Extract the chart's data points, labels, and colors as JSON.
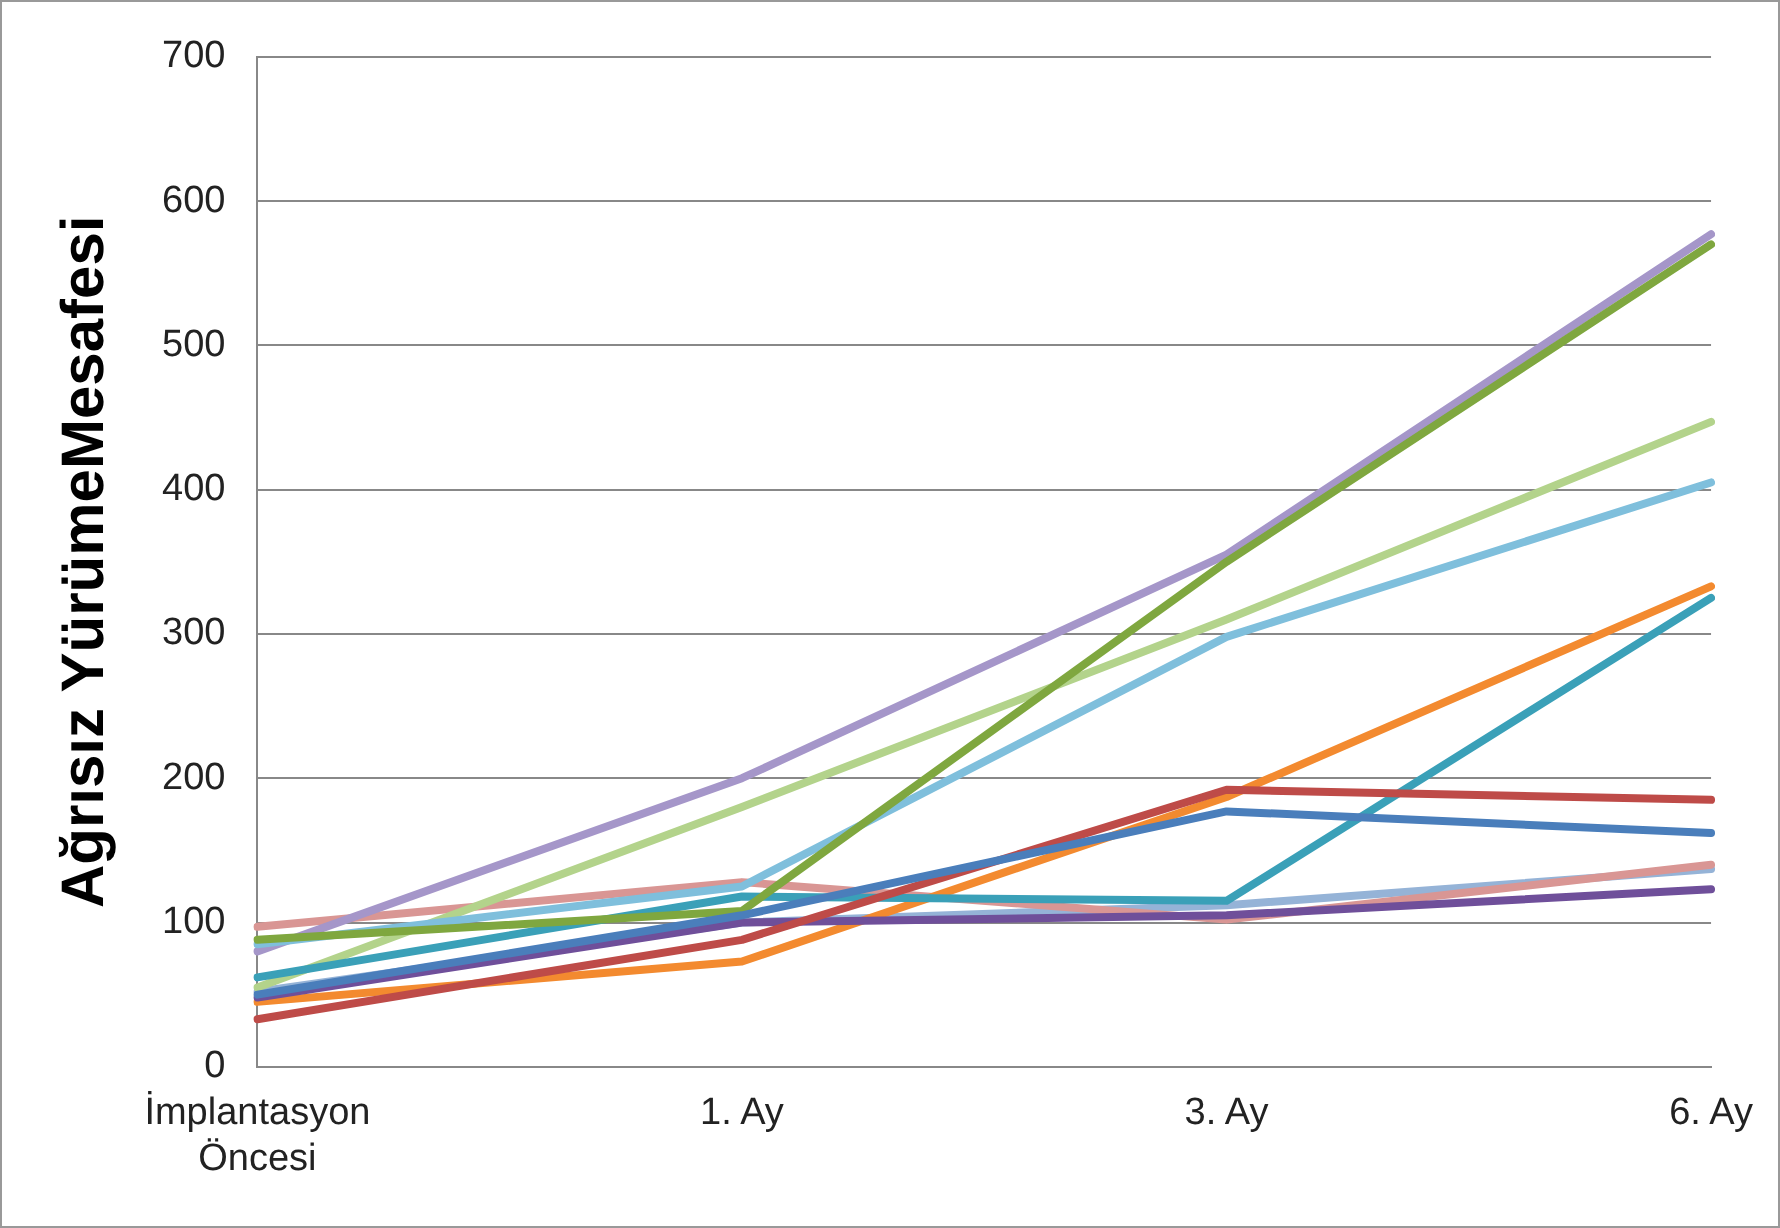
{
  "chart_data": {
    "type": "line",
    "ylabel": "Ağrısız YürümeMesafesi",
    "categories": [
      "İmplantasyon Öncesi",
      "1. Ay",
      "3. Ay",
      "6. Ay"
    ],
    "ylim": [
      0,
      700
    ],
    "yticks": [
      0,
      100,
      200,
      300,
      400,
      500,
      600,
      700
    ],
    "grid": "y",
    "legend": false,
    "marker": "none",
    "line_style": "solid",
    "series": [
      {
        "color": "#4a7ebb",
        "values": [
          50,
          105,
          177,
          162
        ]
      },
      {
        "color": "#be4b48",
        "values": [
          33,
          88,
          192,
          185
        ]
      },
      {
        "color": "#7fa73f",
        "values": [
          88,
          108,
          350,
          570
        ]
      },
      {
        "color": "#6f4f9a",
        "values": [
          48,
          100,
          105,
          123
        ]
      },
      {
        "color": "#3aa0b8",
        "values": [
          62,
          118,
          115,
          325
        ]
      },
      {
        "color": "#f38a2f",
        "values": [
          45,
          73,
          187,
          333
        ]
      },
      {
        "color": "#7fbfdc",
        "values": [
          85,
          125,
          298,
          405
        ]
      },
      {
        "color": "#b3d38b",
        "values": [
          55,
          180,
          310,
          447
        ]
      },
      {
        "color": "#a596c9",
        "values": [
          80,
          200,
          355,
          577
        ]
      },
      {
        "color": "#d99694",
        "values": [
          97,
          128,
          102,
          140
        ]
      },
      {
        "color": "#95b3d7",
        "values": [
          52,
          100,
          112,
          137
        ]
      }
    ]
  }
}
